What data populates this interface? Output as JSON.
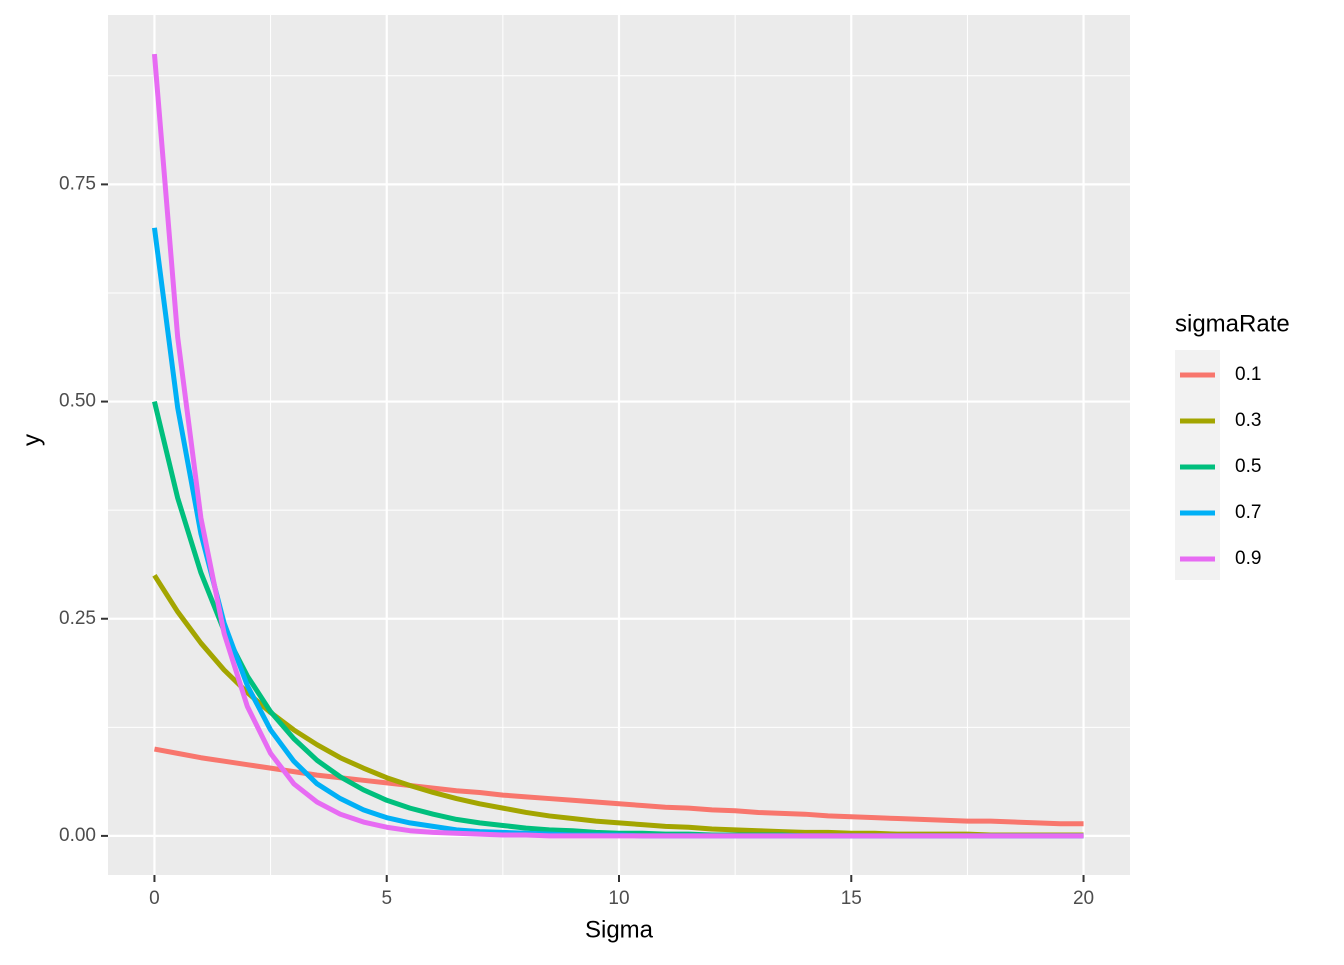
{
  "chart_data": {
    "type": "line",
    "x_label": "Sigma",
    "y_label": "y",
    "legend_title": "sigmaRate",
    "x": [
      0,
      0.5,
      1,
      1.5,
      2,
      2.5,
      3,
      3.5,
      4,
      4.5,
      5,
      5.5,
      6,
      6.5,
      7,
      7.5,
      8,
      8.5,
      9,
      9.5,
      10,
      10.5,
      11,
      11.5,
      12,
      12.5,
      13,
      13.5,
      14,
      14.5,
      15,
      15.5,
      16,
      16.5,
      17,
      17.5,
      18,
      18.5,
      19,
      19.5,
      20
    ],
    "series": [
      {
        "name": "0.1",
        "color": "#F8766D",
        "values": [
          0.1,
          0.095,
          0.09,
          0.086,
          0.082,
          0.078,
          0.074,
          0.07,
          0.067,
          0.064,
          0.061,
          0.058,
          0.055,
          0.052,
          0.05,
          0.047,
          0.045,
          0.043,
          0.041,
          0.039,
          0.037,
          0.035,
          0.033,
          0.032,
          0.03,
          0.029,
          0.027,
          0.026,
          0.025,
          0.023,
          0.022,
          0.021,
          0.02,
          0.019,
          0.018,
          0.017,
          0.017,
          0.016,
          0.015,
          0.014,
          0.014
        ]
      },
      {
        "name": "0.3",
        "color": "#A3A500",
        "values": [
          0.3,
          0.258,
          0.222,
          0.191,
          0.165,
          0.142,
          0.122,
          0.105,
          0.09,
          0.078,
          0.067,
          0.058,
          0.05,
          0.043,
          0.037,
          0.032,
          0.027,
          0.023,
          0.02,
          0.017,
          0.015,
          0.013,
          0.011,
          0.01,
          0.008,
          0.007,
          0.006,
          0.005,
          0.004,
          0.004,
          0.003,
          0.003,
          0.002,
          0.002,
          0.002,
          0.002,
          0.001,
          0.001,
          0.001,
          0.001,
          0.001
        ]
      },
      {
        "name": "0.5",
        "color": "#00BF7D",
        "values": [
          0.5,
          0.389,
          0.303,
          0.236,
          0.184,
          0.143,
          0.112,
          0.087,
          0.068,
          0.053,
          0.041,
          0.032,
          0.025,
          0.019,
          0.015,
          0.012,
          0.009,
          0.007,
          0.006,
          0.004,
          0.003,
          0.003,
          0.002,
          0.002,
          0.001,
          0.001,
          0.001,
          0.001,
          0,
          0,
          0,
          0,
          0,
          0,
          0,
          0,
          0,
          0,
          0,
          0,
          0
        ]
      },
      {
        "name": "0.7",
        "color": "#00B0F6",
        "values": [
          0.7,
          0.493,
          0.348,
          0.245,
          0.173,
          0.122,
          0.086,
          0.06,
          0.043,
          0.03,
          0.021,
          0.015,
          0.011,
          0.007,
          0.005,
          0.004,
          0.003,
          0.002,
          0.001,
          0.001,
          0.001,
          0,
          0,
          0,
          0,
          0,
          0,
          0,
          0,
          0,
          0,
          0,
          0,
          0,
          0,
          0,
          0,
          0,
          0,
          0,
          0
        ]
      },
      {
        "name": "0.9",
        "color": "#E76BF3",
        "values": [
          0.9,
          0.574,
          0.366,
          0.233,
          0.149,
          0.095,
          0.06,
          0.039,
          0.025,
          0.016,
          0.01,
          0.006,
          0.004,
          0.003,
          0.002,
          0.001,
          0.001,
          0,
          0,
          0,
          0,
          0,
          0,
          0,
          0,
          0,
          0,
          0,
          0,
          0,
          0,
          0,
          0,
          0,
          0,
          0,
          0,
          0,
          0,
          0,
          0
        ]
      }
    ],
    "xlim": [
      -1,
      21
    ],
    "ylim": [
      -0.045,
      0.945
    ],
    "xticks": [
      0,
      5,
      10,
      15,
      20
    ],
    "yticks": [
      {
        "value": 0,
        "label": "0.00"
      },
      {
        "value": 0.25,
        "label": "0.25"
      },
      {
        "value": 0.5,
        "label": "0.50"
      },
      {
        "value": 0.75,
        "label": "0.75"
      }
    ],
    "xminorticks": [
      2.5,
      7.5,
      12.5,
      17.5
    ],
    "yminorticks": [
      0.125,
      0.375,
      0.625,
      0.875
    ],
    "grid": true
  }
}
